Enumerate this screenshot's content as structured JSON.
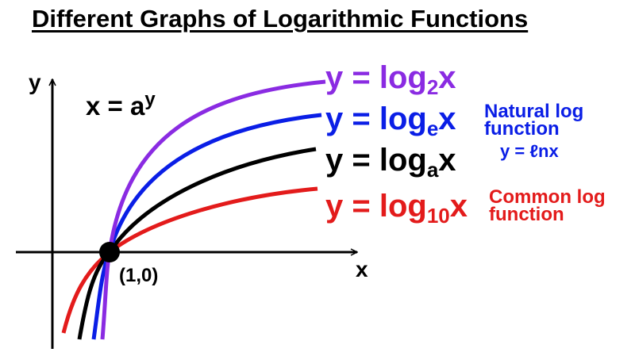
{
  "title": "Different Graphs of Logarithmic Functions",
  "axes": {
    "x_label": "x",
    "y_label": "y"
  },
  "definition": {
    "base": "x = a",
    "exponent": "y"
  },
  "point": {
    "label": "(1,0)"
  },
  "colors": {
    "log2": "#8a2be2",
    "loge": "#0a1ee6",
    "loga": "#000000",
    "log10": "#e31b1b"
  },
  "curves": [
    {
      "id": "log2",
      "prefix": "y = log",
      "sub": "2",
      "suffix": "x"
    },
    {
      "id": "loge",
      "prefix": "y = log",
      "sub": "e",
      "suffix": "x",
      "note_lines": [
        "Natural log",
        "function"
      ],
      "extra": "y = ℓnx"
    },
    {
      "id": "loga",
      "prefix": "y = log",
      "sub": "a",
      "suffix": "x"
    },
    {
      "id": "log10",
      "prefix": "y = log",
      "sub": "10",
      "suffix": "x",
      "note_lines": [
        "Common log",
        "function"
      ]
    }
  ]
}
